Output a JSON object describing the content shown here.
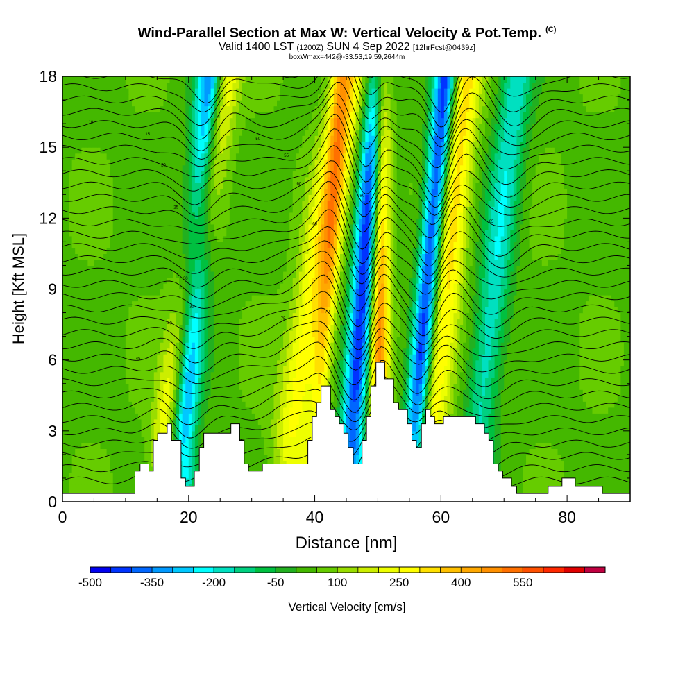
{
  "header": {
    "title": "Wind-Parallel Section at Max W: Vertical Velocity & Pot.Temp.",
    "copyright": "(C)",
    "valid_prefix": "Valid 1400 LST",
    "valid_utc": "(1200Z)",
    "valid_date": "SUN 4 Sep 2022",
    "forecast": "[12hrFcst@0439z]",
    "box_info": "boxWmax=442@-33.53,19.59,2644m"
  },
  "chart_data": {
    "type": "heatmap",
    "title": "Wind-Parallel Section at Max W: Vertical Velocity & Pot.Temp.",
    "xlabel": "Distance [nm]",
    "ylabel": "Height [Kft MSL]",
    "xlim": [
      0,
      90
    ],
    "ylim": [
      0,
      18
    ],
    "x_ticks": [
      "0",
      "20",
      "40",
      "60",
      "80"
    ],
    "x_tick_values": [
      0,
      20,
      40,
      60,
      80
    ],
    "y_ticks": [
      "0",
      "3",
      "6",
      "9",
      "12",
      "15",
      "18"
    ],
    "y_tick_values": [
      0,
      3,
      6,
      9,
      12,
      15,
      18
    ],
    "colorbar": {
      "label": "Vertical Velocity [cm/s]",
      "tick_labels": [
        "-500",
        "-350",
        "-200",
        "-50",
        "100",
        "250",
        "400",
        "550"
      ],
      "tick_values": [
        -500,
        -350,
        -200,
        -50,
        100,
        250,
        400,
        550
      ],
      "min": -500,
      "max": 650,
      "step": 50,
      "colors": [
        "#0000f0",
        "#0033ff",
        "#0066ff",
        "#0099ff",
        "#00c8ff",
        "#00ffff",
        "#00e0c0",
        "#00d080",
        "#00c040",
        "#22b020",
        "#44b800",
        "#66cc00",
        "#99dd00",
        "#ccee00",
        "#eeff00",
        "#ffff00",
        "#ffe000",
        "#ffc000",
        "#ffa800",
        "#ff9000",
        "#ff7000",
        "#ff5000",
        "#ff2800",
        "#e00000",
        "#c00040"
      ]
    },
    "terrain_profile_kft": [
      [
        0,
        0.35
      ],
      [
        11.5,
        0.35
      ],
      [
        11.5,
        1.3
      ],
      [
        12.3,
        1.3
      ],
      [
        12.3,
        1.6
      ],
      [
        13.7,
        1.6
      ],
      [
        13.7,
        1.3
      ],
      [
        14.4,
        1.3
      ],
      [
        14.4,
        2.6
      ],
      [
        15.1,
        2.6
      ],
      [
        15.1,
        2.9
      ],
      [
        16.6,
        2.9
      ],
      [
        16.6,
        3.3
      ],
      [
        17.3,
        3.3
      ],
      [
        17.3,
        2.6
      ],
      [
        18.8,
        2.6
      ],
      [
        18.8,
        1.0
      ],
      [
        19.5,
        1.0
      ],
      [
        19.5,
        0.65
      ],
      [
        20.9,
        0.65
      ],
      [
        20.9,
        1.3
      ],
      [
        21.7,
        1.3
      ],
      [
        21.7,
        2.3
      ],
      [
        22.4,
        2.3
      ],
      [
        22.4,
        2.9
      ],
      [
        26.7,
        2.9
      ],
      [
        26.7,
        3.3
      ],
      [
        28.1,
        3.3
      ],
      [
        28.1,
        2.6
      ],
      [
        28.8,
        2.6
      ],
      [
        28.8,
        1.6
      ],
      [
        29.5,
        1.6
      ],
      [
        29.5,
        1.3
      ],
      [
        31.7,
        1.3
      ],
      [
        31.7,
        1.6
      ],
      [
        38.9,
        1.6
      ],
      [
        38.9,
        2.6
      ],
      [
        39.6,
        2.6
      ],
      [
        39.6,
        3.6
      ],
      [
        40.3,
        3.6
      ],
      [
        40.3,
        4.2
      ],
      [
        41.0,
        4.2
      ],
      [
        41.0,
        4.9
      ],
      [
        42.5,
        4.9
      ],
      [
        42.5,
        3.9
      ],
      [
        43.2,
        3.9
      ],
      [
        43.2,
        3.6
      ],
      [
        43.9,
        3.6
      ],
      [
        43.9,
        3.3
      ],
      [
        44.6,
        3.3
      ],
      [
        44.6,
        2.9
      ],
      [
        45.3,
        2.9
      ],
      [
        45.3,
        2.3
      ],
      [
        46.1,
        2.3
      ],
      [
        46.1,
        1.6
      ],
      [
        47.5,
        1.6
      ],
      [
        47.5,
        2.6
      ],
      [
        48.2,
        2.6
      ],
      [
        48.2,
        3.6
      ],
      [
        48.9,
        3.6
      ],
      [
        48.9,
        4.9
      ],
      [
        49.7,
        4.9
      ],
      [
        49.7,
        5.9
      ],
      [
        51.1,
        5.9
      ],
      [
        51.1,
        5.2
      ],
      [
        52.5,
        5.2
      ],
      [
        52.5,
        4.2
      ],
      [
        53.3,
        4.2
      ],
      [
        53.3,
        3.9
      ],
      [
        54.7,
        3.9
      ],
      [
        54.7,
        3.3
      ],
      [
        55.4,
        3.3
      ],
      [
        55.4,
        2.6
      ],
      [
        56.1,
        2.6
      ],
      [
        56.1,
        2.3
      ],
      [
        56.9,
        2.3
      ],
      [
        56.9,
        3.3
      ],
      [
        57.6,
        3.3
      ],
      [
        57.6,
        3.9
      ],
      [
        58.3,
        3.9
      ],
      [
        58.3,
        3.6
      ],
      [
        59.0,
        3.6
      ],
      [
        59.0,
        3.3
      ],
      [
        60.4,
        3.3
      ],
      [
        60.4,
        3.6
      ],
      [
        65.5,
        3.6
      ],
      [
        65.5,
        3.3
      ],
      [
        66.9,
        3.3
      ],
      [
        66.9,
        2.9
      ],
      [
        67.6,
        2.9
      ],
      [
        67.6,
        2.6
      ],
      [
        68.3,
        2.6
      ],
      [
        68.3,
        1.6
      ],
      [
        69.1,
        1.6
      ],
      [
        69.1,
        1.3
      ],
      [
        69.8,
        1.3
      ],
      [
        69.8,
        1.0
      ],
      [
        71.2,
        1.0
      ],
      [
        71.2,
        0.65
      ],
      [
        72.0,
        0.65
      ],
      [
        72.0,
        0.35
      ],
      [
        77.0,
        0.35
      ],
      [
        77.0,
        0.65
      ],
      [
        79.2,
        0.65
      ],
      [
        79.2,
        1.0
      ],
      [
        81.3,
        1.0
      ],
      [
        81.3,
        0.65
      ],
      [
        85.6,
        0.65
      ],
      [
        85.6,
        0.35
      ],
      [
        90,
        0.35
      ]
    ],
    "velocity_features": [
      {
        "x": 16.5,
        "tilt": 0.62,
        "amp": 300,
        "width": 2.3
      },
      {
        "x": 19.0,
        "tilt": 0.3,
        "amp": -450,
        "width": 2.2
      },
      {
        "x": 36.5,
        "tilt": 0.6,
        "amp": 260,
        "width": 3.0
      },
      {
        "x": 40.5,
        "tilt": 0.25,
        "amp": 220,
        "width": 1.4
      },
      {
        "x": 46.0,
        "tilt": 0.28,
        "amp": -500,
        "width": 2.0
      },
      {
        "x": 50.0,
        "tilt": 0.05,
        "amp": 450,
        "width": 1.5
      },
      {
        "x": 56.0,
        "tilt": 0.32,
        "amp": -520,
        "width": 1.8
      },
      {
        "x": 58.5,
        "tilt": 0.35,
        "amp": 300,
        "width": 2.6
      },
      {
        "x": 66.0,
        "tilt": 0.4,
        "amp": -230,
        "width": 2.6
      }
    ],
    "contour_labels": [
      "10",
      "15",
      "20",
      "25",
      "30",
      "35",
      "40",
      "45",
      "50",
      "55",
      "60",
      "65",
      "70",
      "75",
      "80",
      "85"
    ]
  }
}
